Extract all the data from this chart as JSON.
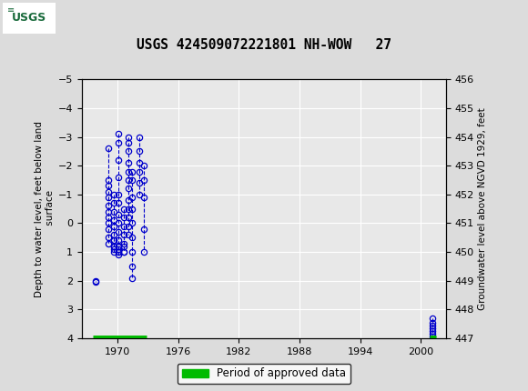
{
  "title": "USGS 424509072221801 NH-WOW   27",
  "ylabel_left": "Depth to water level, feet below land\n surface",
  "ylabel_right": "Groundwater level above NGVD 1929, feet",
  "ylim_left": [
    4.0,
    -5.0
  ],
  "ylim_right": [
    447.0,
    456.0
  ],
  "yticks_left": [
    -5.0,
    -4.0,
    -3.0,
    -2.0,
    -1.0,
    0.0,
    1.0,
    2.0,
    3.0,
    4.0
  ],
  "yticks_right": [
    447.0,
    448.0,
    449.0,
    450.0,
    451.0,
    452.0,
    453.0,
    454.0,
    455.0,
    456.0
  ],
  "xticks": [
    1970,
    1976,
    1982,
    1988,
    1994,
    2000
  ],
  "xlim": [
    1966.5,
    2002.5
  ],
  "header_color": "#1a6b3c",
  "bg_color": "#dcdcdc",
  "plot_bg_color": "#e8e8e8",
  "grid_color": "#ffffff",
  "marker_color": "#0000cc",
  "approved_color": "#00bb00",
  "groups": [
    {
      "x": 1967.85,
      "y": [
        2.0,
        2.05
      ]
    },
    {
      "x": 1969.15,
      "y": [
        -2.6,
        -1.5,
        -1.3,
        -1.1,
        -0.9,
        -0.6,
        -0.4,
        -0.2,
        0.0,
        0.2,
        0.5,
        0.7
      ]
    },
    {
      "x": 1969.7,
      "y": [
        -1.0,
        -0.7,
        -0.4,
        -0.1,
        0.1,
        0.4,
        0.6,
        0.8,
        1.0,
        0.8,
        0.6,
        0.9
      ]
    },
    {
      "x": 1970.15,
      "y": [
        -3.1,
        -2.8,
        -2.2,
        -1.6,
        -1.0,
        -0.7,
        -0.3,
        0.0,
        0.3,
        0.6,
        0.8,
        1.0,
        0.8,
        1.0,
        1.1,
        0.9
      ]
    },
    {
      "x": 1970.65,
      "y": [
        -0.5,
        -0.2,
        0.1,
        0.4,
        0.7,
        1.0,
        0.8,
        1.0
      ]
    },
    {
      "x": 1971.1,
      "y": [
        -3.0,
        -2.8,
        -2.5,
        -2.1,
        -1.8,
        -1.5,
        -1.2,
        -0.8,
        -0.5,
        -0.2,
        0.1,
        0.4
      ]
    },
    {
      "x": 1971.5,
      "y": [
        -1.8,
        -1.5,
        -0.9,
        -0.5,
        0.0,
        0.5,
        1.0,
        1.5,
        1.9
      ]
    },
    {
      "x": 1972.2,
      "y": [
        -3.0,
        -2.5,
        -2.1,
        -1.8,
        -1.4,
        -1.0
      ]
    },
    {
      "x": 1972.6,
      "y": [
        -2.0,
        -1.5,
        -0.9,
        0.2,
        1.0
      ]
    },
    {
      "x": 2001.1,
      "y": [
        3.3,
        3.45,
        3.55,
        3.65,
        3.75,
        3.85,
        3.95
      ]
    }
  ],
  "approved_periods": [
    {
      "x_start": 1967.6,
      "x_end": 1972.9
    },
    {
      "x_start": 2000.9,
      "x_end": 2001.5
    }
  ],
  "legend_label": "Period of approved data",
  "legend_color": "#00bb00"
}
